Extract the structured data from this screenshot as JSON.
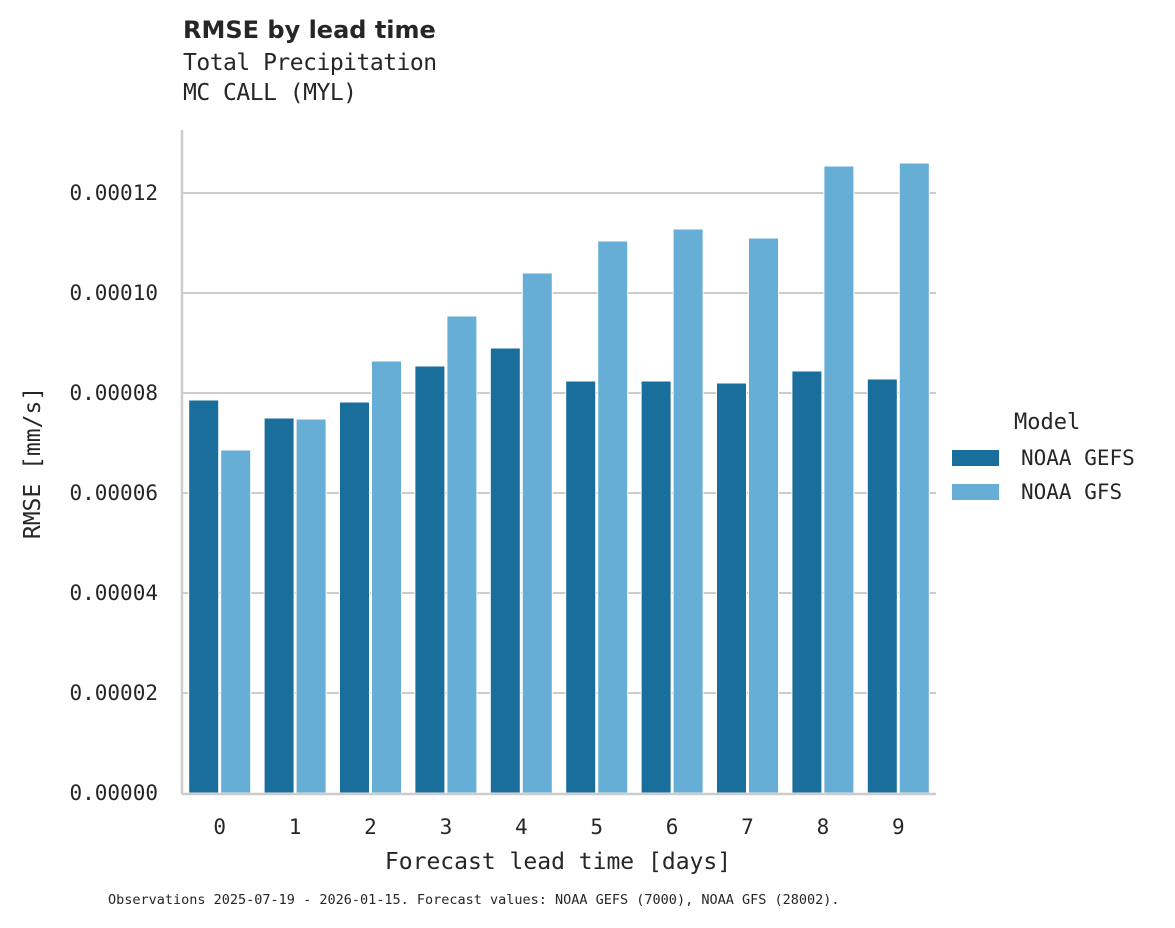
{
  "header": {
    "title": "RMSE by lead time",
    "subtitle_line1": "Total Precipitation",
    "subtitle_line2": "MC CALL (MYL)"
  },
  "legend": {
    "title": "Model",
    "items": [
      {
        "label": "NOAA GEFS",
        "color": "#1a6e9c"
      },
      {
        "label": "NOAA GFS",
        "color": "#67aed6"
      }
    ]
  },
  "footnote": "Observations 2025-07-19 - 2026-01-15. Forecast values: NOAA GEFS (7000), NOAA GFS (28002).",
  "chart_data": {
    "type": "bar",
    "title": "RMSE by lead time",
    "subtitle": "Total Precipitation / MC CALL (MYL)",
    "xlabel": "Forecast lead time [days]",
    "ylabel": "RMSE [mm/s]",
    "categories": [
      "0",
      "1",
      "2",
      "3",
      "4",
      "5",
      "6",
      "7",
      "8",
      "9"
    ],
    "series": [
      {
        "name": "NOAA GEFS",
        "color": "#1a6e9c",
        "values": [
          7.86e-05,
          7.5e-05,
          7.82e-05,
          8.54e-05,
          8.9e-05,
          8.24e-05,
          8.24e-05,
          8.2e-05,
          8.44e-05,
          8.28e-05
        ]
      },
      {
        "name": "NOAA GFS",
        "color": "#67aed6",
        "values": [
          6.86e-05,
          7.48e-05,
          8.64e-05,
          9.54e-05,
          0.000104,
          0.0001104,
          0.0001128,
          0.000111,
          0.0001254,
          0.000126
        ]
      }
    ],
    "ylim": [
      0,
      0.000133
    ],
    "yticks": [
      "0.00000",
      "0.00002",
      "0.00004",
      "0.00006",
      "0.00008",
      "0.00010",
      "0.00012"
    ],
    "ytick_values": [
      0,
      2e-05,
      4e-05,
      6e-05,
      8e-05,
      0.0001,
      0.00012
    ],
    "grid": "horizontal",
    "legend_position": "right"
  }
}
